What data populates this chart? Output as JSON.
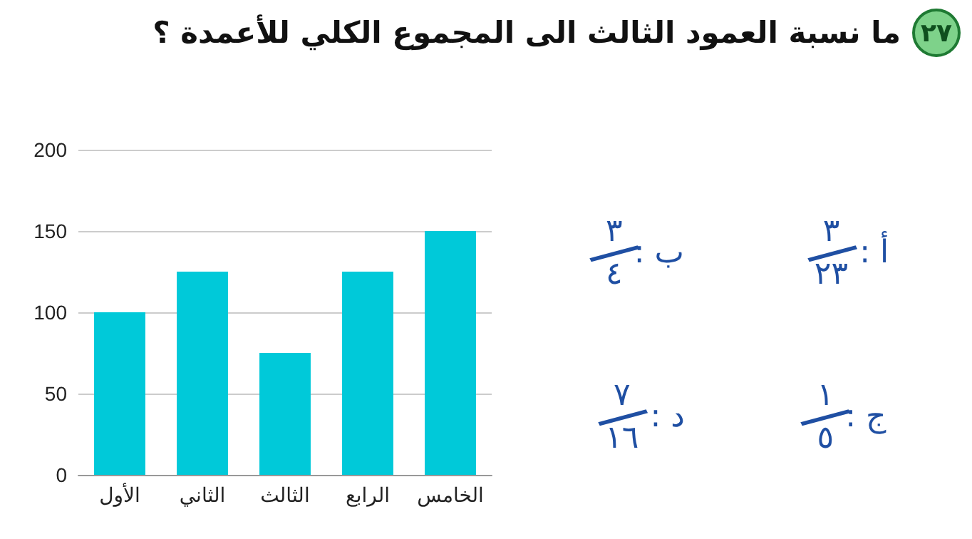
{
  "chart_data": {
    "type": "bar",
    "title": "ما نسبة العمود الثالث الى المجموع الكلي للأعمدة ؟",
    "categories": [
      "الأول",
      "الثاني",
      "الثالث",
      "الرابع",
      "الخامس"
    ],
    "values": [
      100,
      125,
      75,
      125,
      150
    ],
    "color": "#00c9d9",
    "ylim": [
      0,
      200
    ],
    "yticks": [
      0,
      50,
      100,
      150,
      200
    ],
    "grid": "y",
    "annotations": [
      "٢٧",
      "أ : ٣/٢٣",
      "ب : ٣/٤",
      "ج : ١/٥",
      "د : ٧/١٦"
    ]
  }
}
